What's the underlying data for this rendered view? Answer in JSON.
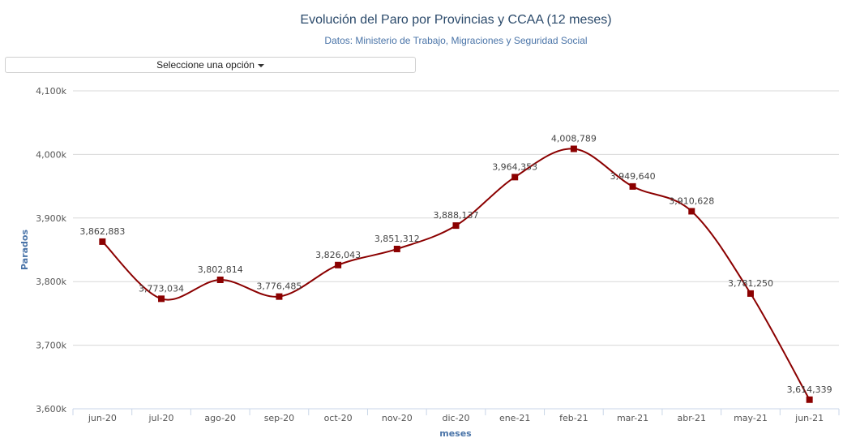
{
  "header": {
    "title": "Evolución del Paro por Provincias y CCAA (12 meses)",
    "subtitle": "Datos: Ministerio de Trabajo, Migraciones y Seguridad Social"
  },
  "selector": {
    "label": "Seleccione una opción"
  },
  "chart_data": {
    "type": "line",
    "categories": [
      "jun-20",
      "jul-20",
      "ago-20",
      "sep-20",
      "oct-20",
      "nov-20",
      "dic-20",
      "ene-21",
      "feb-21",
      "mar-21",
      "abr-21",
      "may-21",
      "jun-21"
    ],
    "values": [
      3862883,
      3773034,
      3802814,
      3776485,
      3826043,
      3851312,
      3888137,
      3964353,
      4008789,
      3949640,
      3910628,
      3781250,
      3614339
    ],
    "value_labels": [
      "3,862,883",
      "3,773,034",
      "3,802,814",
      "3,776,485",
      "3,826,043",
      "3,851,312",
      "3,888,137",
      "3,964,353",
      "4,008,789",
      "3,949,640",
      "3,910,628",
      "3,781,250",
      "3,614,339"
    ],
    "xlabel": "meses",
    "ylabel": "Parados",
    "ylim": [
      3600000,
      4100000
    ],
    "yticks": [
      3600000,
      3700000,
      3800000,
      3900000,
      4000000,
      4100000
    ],
    "ytick_labels": [
      "3,600k",
      "3,700k",
      "3,800k",
      "3,900k",
      "4,000k",
      "4,100k"
    ],
    "grid": true,
    "legend": "none",
    "line_color": "#8b0000",
    "marker_color": "#8b0000",
    "grid_color": "#d8d8d8",
    "axis_color": "#c9d6e8"
  }
}
